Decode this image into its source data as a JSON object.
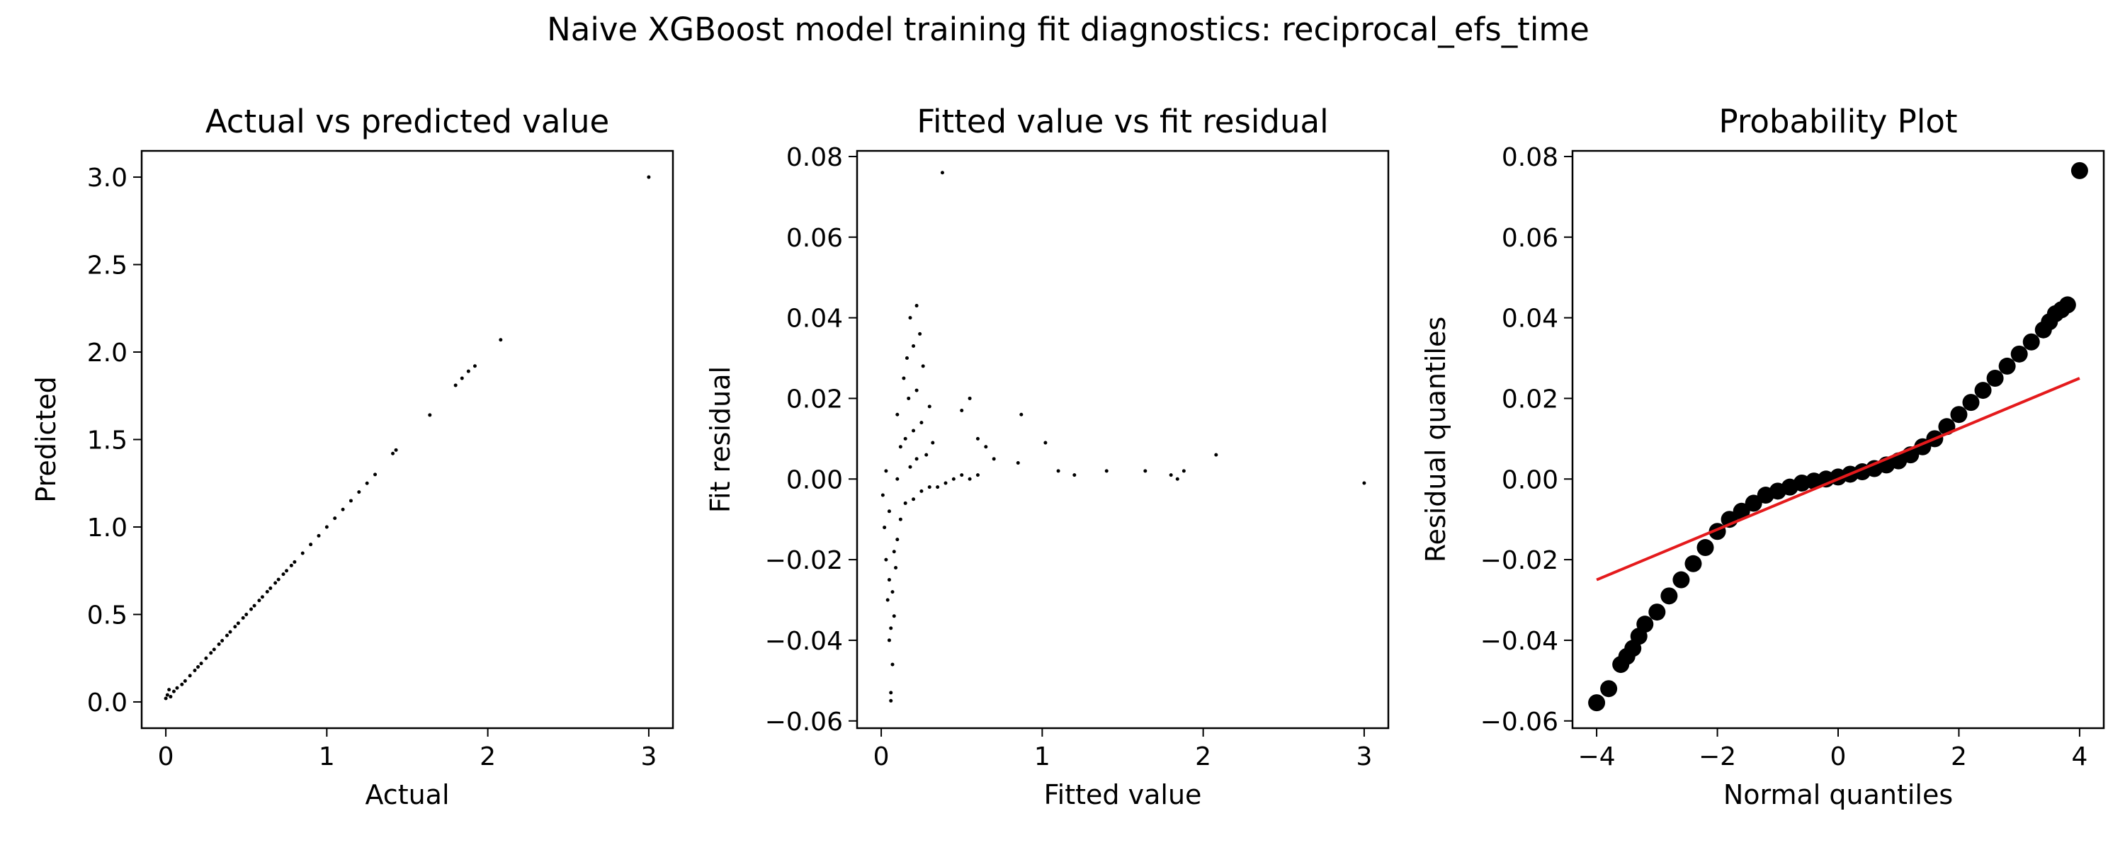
{
  "figure": {
    "suptitle": "Naive XGBoost model training fit diagnostics: reciprocal_efs_time"
  },
  "chart_data": [
    {
      "type": "scatter",
      "title": "Actual vs predicted value",
      "xlabel": "Actual",
      "ylabel": "Predicted",
      "xlim": [
        -0.15,
        3.15
      ],
      "ylim": [
        -0.15,
        3.15
      ],
      "xticks": [
        0,
        1,
        2,
        3
      ],
      "yticks": [
        0.0,
        0.5,
        1.0,
        1.5,
        2.0,
        2.5,
        3.0
      ],
      "xtick_labels": [
        "0",
        "1",
        "2",
        "3"
      ],
      "ytick_labels": [
        "0.0",
        "0.5",
        "1.0",
        "1.5",
        "2.0",
        "2.5",
        "3.0"
      ],
      "grid": false,
      "marker_color": "#000000",
      "points": [
        [
          0.0,
          0.02
        ],
        [
          0.01,
          0.04
        ],
        [
          0.02,
          0.07
        ],
        [
          0.03,
          0.03
        ],
        [
          0.05,
          0.06
        ],
        [
          0.07,
          0.08
        ],
        [
          0.1,
          0.1
        ],
        [
          0.12,
          0.12
        ],
        [
          0.15,
          0.15
        ],
        [
          0.18,
          0.18
        ],
        [
          0.2,
          0.2
        ],
        [
          0.22,
          0.22
        ],
        [
          0.25,
          0.25
        ],
        [
          0.28,
          0.28
        ],
        [
          0.3,
          0.3
        ],
        [
          0.33,
          0.33
        ],
        [
          0.35,
          0.35
        ],
        [
          0.38,
          0.38
        ],
        [
          0.4,
          0.4
        ],
        [
          0.43,
          0.43
        ],
        [
          0.45,
          0.45
        ],
        [
          0.48,
          0.48
        ],
        [
          0.5,
          0.5
        ],
        [
          0.53,
          0.53
        ],
        [
          0.55,
          0.55
        ],
        [
          0.58,
          0.58
        ],
        [
          0.6,
          0.6
        ],
        [
          0.63,
          0.63
        ],
        [
          0.65,
          0.65
        ],
        [
          0.68,
          0.68
        ],
        [
          0.7,
          0.7
        ],
        [
          0.73,
          0.73
        ],
        [
          0.75,
          0.75
        ],
        [
          0.78,
          0.78
        ],
        [
          0.8,
          0.8
        ],
        [
          0.85,
          0.85
        ],
        [
          0.9,
          0.9
        ],
        [
          0.95,
          0.95
        ],
        [
          1.0,
          1.0
        ],
        [
          1.05,
          1.05
        ],
        [
          1.1,
          1.1
        ],
        [
          1.15,
          1.15
        ],
        [
          1.2,
          1.2
        ],
        [
          1.25,
          1.25
        ],
        [
          1.3,
          1.3
        ],
        [
          1.41,
          1.42
        ],
        [
          1.43,
          1.44
        ],
        [
          1.64,
          1.64
        ],
        [
          1.8,
          1.81
        ],
        [
          1.84,
          1.85
        ],
        [
          1.88,
          1.89
        ],
        [
          1.92,
          1.92
        ],
        [
          2.08,
          2.07
        ],
        [
          3.0,
          3.0
        ]
      ]
    },
    {
      "type": "scatter",
      "title": "Fitted value vs fit residual",
      "xlabel": "Fitted value",
      "ylabel": "Fit residual",
      "xlim": [
        -0.15,
        3.15
      ],
      "ylim": [
        -0.0618,
        0.0814
      ],
      "xticks": [
        0,
        1,
        2,
        3
      ],
      "yticks": [
        -0.06,
        -0.04,
        -0.02,
        0.0,
        0.02,
        0.04,
        0.06,
        0.08
      ],
      "xtick_labels": [
        "0",
        "1",
        "2",
        "3"
      ],
      "ytick_labels": [
        "−0.06",
        "−0.04",
        "−0.02",
        "0.00",
        "0.02",
        "0.04",
        "0.06",
        "0.08"
      ],
      "grid": false,
      "marker_color": "#000000",
      "points": [
        [
          0.06,
          -0.055
        ],
        [
          0.06,
          -0.053
        ],
        [
          0.07,
          -0.046
        ],
        [
          0.05,
          -0.04
        ],
        [
          0.06,
          -0.037
        ],
        [
          0.08,
          -0.034
        ],
        [
          0.04,
          -0.03
        ],
        [
          0.07,
          -0.028
        ],
        [
          0.05,
          -0.025
        ],
        [
          0.09,
          -0.022
        ],
        [
          0.03,
          -0.02
        ],
        [
          0.08,
          -0.018
        ],
        [
          0.1,
          -0.015
        ],
        [
          0.02,
          -0.012
        ],
        [
          0.12,
          -0.01
        ],
        [
          0.05,
          -0.008
        ],
        [
          0.15,
          -0.006
        ],
        [
          0.2,
          -0.005
        ],
        [
          0.01,
          -0.004
        ],
        [
          0.25,
          -0.003
        ],
        [
          0.3,
          -0.002
        ],
        [
          0.35,
          -0.002
        ],
        [
          0.4,
          -0.001
        ],
        [
          0.1,
          0.0
        ],
        [
          0.45,
          0.0
        ],
        [
          0.5,
          0.001
        ],
        [
          0.55,
          0.0
        ],
        [
          0.6,
          0.001
        ],
        [
          0.03,
          0.002
        ],
        [
          0.18,
          0.003
        ],
        [
          0.22,
          0.005
        ],
        [
          0.28,
          0.006
        ],
        [
          0.12,
          0.008
        ],
        [
          0.32,
          0.009
        ],
        [
          0.15,
          0.01
        ],
        [
          0.2,
          0.012
        ],
        [
          0.25,
          0.014
        ],
        [
          0.1,
          0.016
        ],
        [
          0.3,
          0.018
        ],
        [
          0.17,
          0.02
        ],
        [
          0.22,
          0.022
        ],
        [
          0.14,
          0.025
        ],
        [
          0.26,
          0.028
        ],
        [
          0.16,
          0.03
        ],
        [
          0.2,
          0.033
        ],
        [
          0.24,
          0.036
        ],
        [
          0.18,
          0.04
        ],
        [
          0.22,
          0.043
        ],
        [
          0.38,
          0.076
        ],
        [
          0.5,
          0.017
        ],
        [
          0.55,
          0.02
        ],
        [
          0.6,
          0.01
        ],
        [
          0.65,
          0.008
        ],
        [
          0.7,
          0.005
        ],
        [
          0.85,
          0.004
        ],
        [
          0.87,
          0.016
        ],
        [
          1.02,
          0.009
        ],
        [
          1.1,
          0.002
        ],
        [
          1.2,
          0.001
        ],
        [
          1.4,
          0.002
        ],
        [
          1.64,
          0.002
        ],
        [
          1.8,
          0.001
        ],
        [
          1.84,
          0.0
        ],
        [
          1.88,
          0.002
        ],
        [
          2.08,
          0.006
        ],
        [
          3.0,
          -0.001
        ]
      ]
    },
    {
      "type": "scatter",
      "title": "Probability Plot",
      "xlabel": "Normal quantiles",
      "ylabel": "Residual quantiles",
      "xlim": [
        -4.4,
        4.4
      ],
      "ylim": [
        -0.0618,
        0.0814
      ],
      "xticks": [
        -4,
        -2,
        0,
        2,
        4
      ],
      "yticks": [
        -0.06,
        -0.04,
        -0.02,
        0.0,
        0.02,
        0.04,
        0.06,
        0.08
      ],
      "xtick_labels": [
        "−4",
        "−2",
        "0",
        "2",
        "4"
      ],
      "ytick_labels": [
        "−0.06",
        "−0.04",
        "−0.02",
        "0.00",
        "0.02",
        "0.04",
        "0.06",
        "0.08"
      ],
      "grid": false,
      "marker_color": "#000000",
      "line_color": "#e41a1c",
      "fit_line": {
        "x": [
          -4.0,
          4.0
        ],
        "y": [
          -0.025,
          0.025
        ]
      },
      "points": [
        [
          -4.0,
          -0.0555
        ],
        [
          -3.8,
          -0.052
        ],
        [
          -3.6,
          -0.046
        ],
        [
          -3.5,
          -0.044
        ],
        [
          -3.4,
          -0.042
        ],
        [
          -3.3,
          -0.039
        ],
        [
          -3.2,
          -0.036
        ],
        [
          -3.0,
          -0.033
        ],
        [
          -2.8,
          -0.029
        ],
        [
          -2.6,
          -0.025
        ],
        [
          -2.4,
          -0.021
        ],
        [
          -2.2,
          -0.017
        ],
        [
          -2.0,
          -0.013
        ],
        [
          -1.8,
          -0.01
        ],
        [
          -1.6,
          -0.008
        ],
        [
          -1.4,
          -0.006
        ],
        [
          -1.2,
          -0.004
        ],
        [
          -1.0,
          -0.003
        ],
        [
          -0.8,
          -0.002
        ],
        [
          -0.6,
          -0.001
        ],
        [
          -0.4,
          -0.0005
        ],
        [
          -0.2,
          0.0
        ],
        [
          0.0,
          0.0005
        ],
        [
          0.2,
          0.0012
        ],
        [
          0.4,
          0.0018
        ],
        [
          0.6,
          0.0026
        ],
        [
          0.8,
          0.0035
        ],
        [
          1.0,
          0.0045
        ],
        [
          1.2,
          0.006
        ],
        [
          1.4,
          0.008
        ],
        [
          1.6,
          0.01
        ],
        [
          1.8,
          0.013
        ],
        [
          2.0,
          0.016
        ],
        [
          2.2,
          0.019
        ],
        [
          2.4,
          0.022
        ],
        [
          2.6,
          0.025
        ],
        [
          2.8,
          0.028
        ],
        [
          3.0,
          0.031
        ],
        [
          3.2,
          0.034
        ],
        [
          3.4,
          0.037
        ],
        [
          3.5,
          0.039
        ],
        [
          3.6,
          0.041
        ],
        [
          3.7,
          0.042
        ],
        [
          3.8,
          0.0432
        ],
        [
          4.0,
          0.0765
        ]
      ]
    }
  ]
}
